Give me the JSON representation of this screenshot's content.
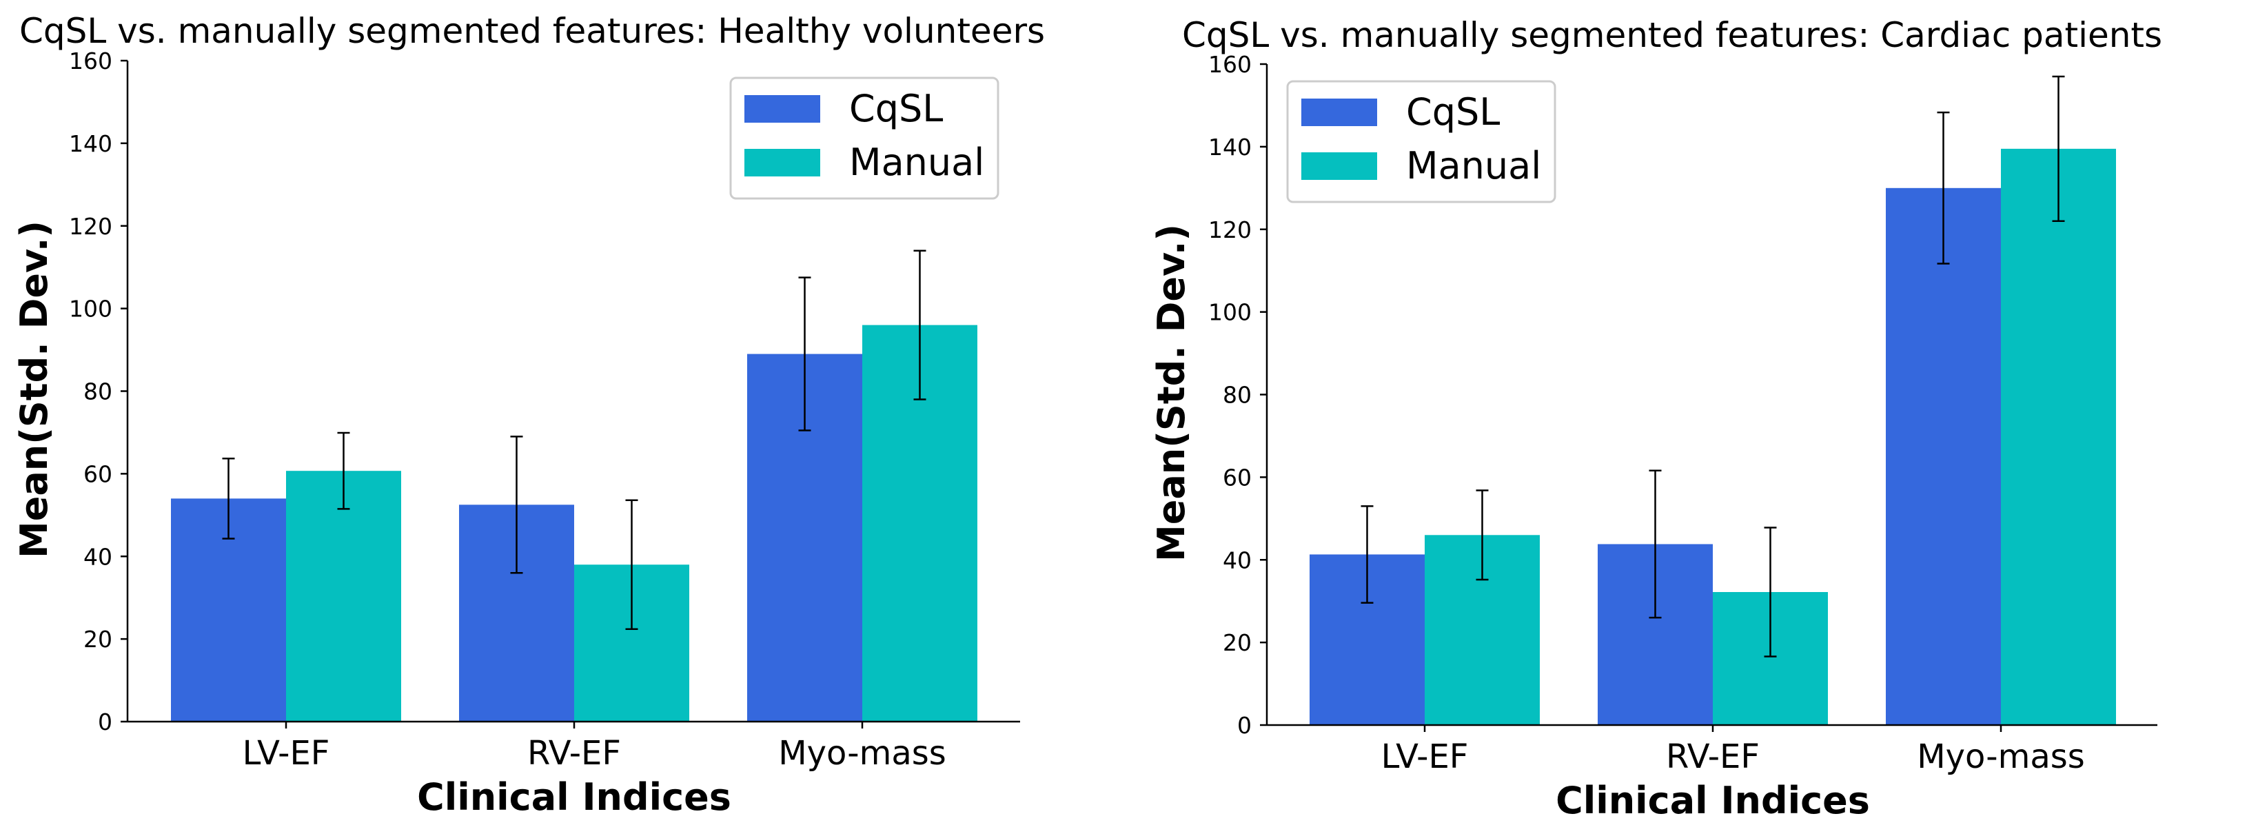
{
  "colors": {
    "cqsl": "#3568DD",
    "manual": "#05BFBF"
  },
  "chart_data": [
    {
      "type": "bar",
      "title": "CqSL vs. manually segmented features: Healthy volunteers",
      "xlabel": "Clinical Indices",
      "ylabel": "Mean(Std. Dev.)",
      "categories": [
        "LV-EF",
        "RV-EF",
        "Myo-mass"
      ],
      "ylim": [
        0,
        160
      ],
      "yticks": [
        "0",
        "20",
        "40",
        "60",
        "80",
        "100",
        "120",
        "140",
        "160"
      ],
      "legend_position": "top-right",
      "series": [
        {
          "name": "CqSL",
          "values": [
            54,
            52.5,
            89
          ],
          "errors": [
            9.7,
            16.5,
            18.5
          ]
        },
        {
          "name": "Manual",
          "values": [
            60.7,
            38,
            96
          ],
          "errors": [
            9.2,
            15.6,
            18
          ]
        }
      ]
    },
    {
      "type": "bar",
      "title": "CqSL vs. manually segmented features: Cardiac patients",
      "xlabel": "Clinical Indices",
      "ylabel": "Mean(Std. Dev.)",
      "categories": [
        "LV-EF",
        "RV-EF",
        "Myo-mass"
      ],
      "ylim": [
        0,
        160
      ],
      "yticks": [
        "0",
        "20",
        "40",
        "60",
        "80",
        "100",
        "120",
        "140",
        "160"
      ],
      "legend_position": "top-left",
      "series": [
        {
          "name": "CqSL",
          "values": [
            41.3,
            43.8,
            130
          ],
          "errors": [
            11.7,
            17.8,
            18.3
          ]
        },
        {
          "name": "Manual",
          "values": [
            46,
            32.2,
            139.5
          ],
          "errors": [
            10.8,
            15.6,
            17.5
          ]
        }
      ]
    }
  ]
}
